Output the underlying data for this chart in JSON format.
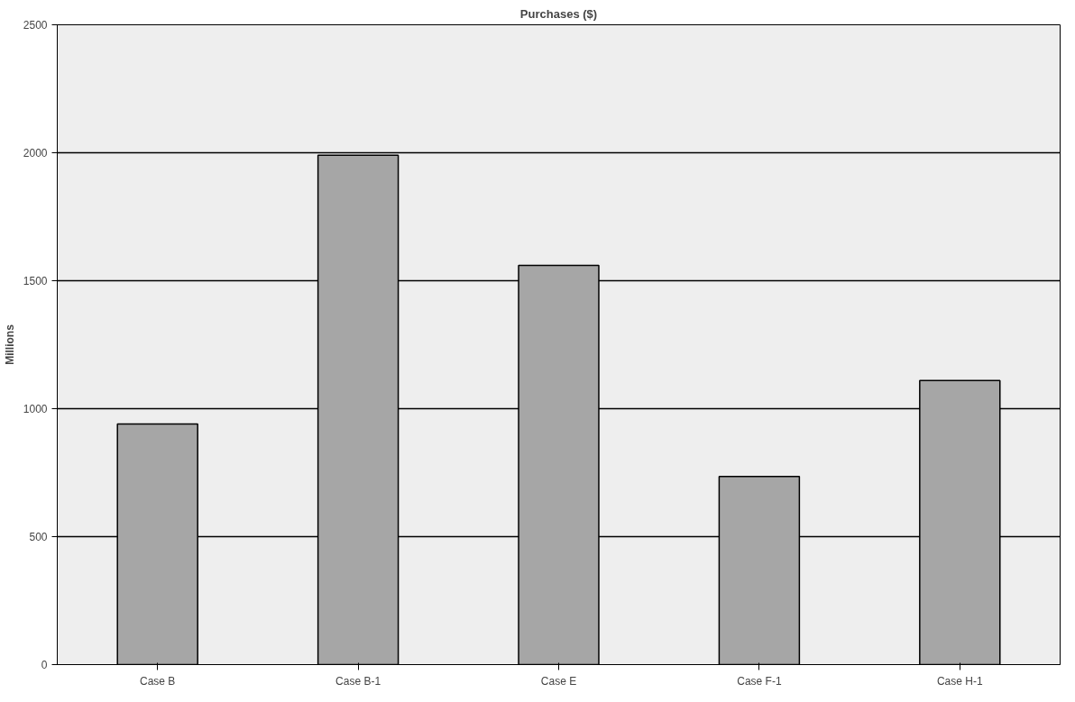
{
  "chart_data": {
    "type": "bar",
    "title": "Purchases ($)",
    "ylabel": "Millions",
    "categories": [
      "Case B",
      "Case B-1",
      "Case E",
      "Case F-1",
      "Case H-1"
    ],
    "values": [
      940,
      1990,
      1560,
      735,
      1110
    ],
    "color": "#a6a6a6",
    "ylim": [
      0,
      2500
    ],
    "yticks": [
      0,
      500,
      1000,
      1500,
      2000,
      2500
    ],
    "grid": "y"
  }
}
